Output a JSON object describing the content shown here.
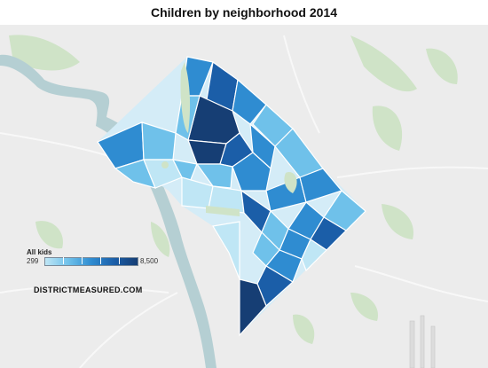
{
  "map": {
    "title": "Children by neighborhood 2014",
    "credit": "DISTRICTMEASURED.COM",
    "legend": {
      "title": "All kids",
      "min": "299",
      "max": "8,500"
    },
    "colors": {
      "background": "#ececec",
      "water": "#b5cfd3",
      "park": "#cfe3c7",
      "road": "#f8f8f8",
      "border": "#ffffff",
      "scale": [
        "#bfe6f5",
        "#6fc1ea",
        "#2f8cd1",
        "#1b5ea8",
        "#163e74"
      ]
    }
  }
}
